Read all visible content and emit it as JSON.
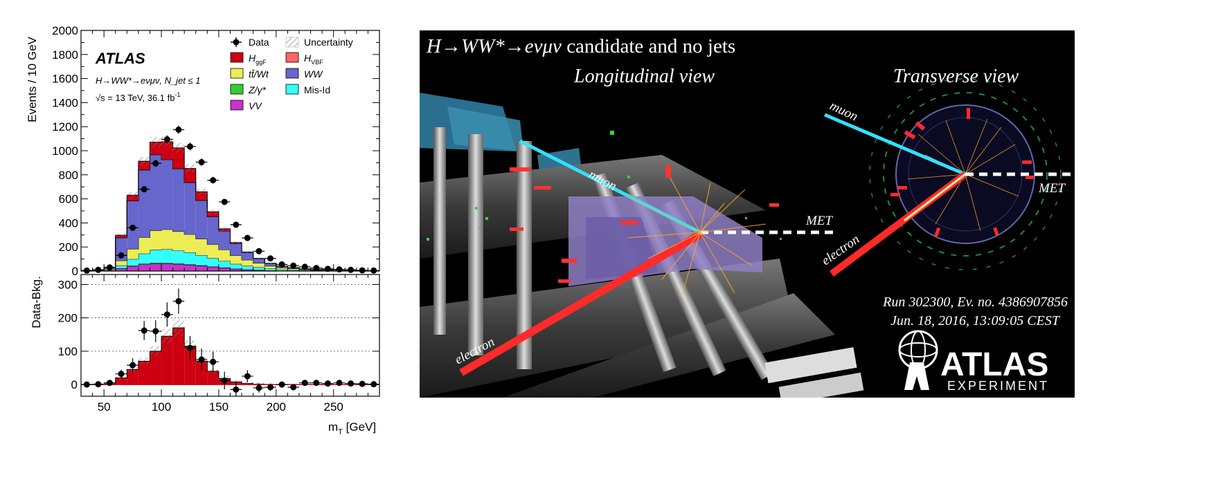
{
  "chart_data": [
    {
      "type": "bar",
      "panel": "main",
      "stacked": true,
      "experiment_label": "ATLAS",
      "process_label": "H→WW*→eνμν, N_jet ≤ 1",
      "energy_label": "√s = 13 TeV, 36.1 fb",
      "energy_label_exp": "-1",
      "ylabel": "Events / 10 GeV",
      "xlabel": "m",
      "xlabel_sub": "T",
      "xlabel_unit": " [GeV]",
      "xlim": [
        30,
        290
      ],
      "ylim": [
        0,
        2000
      ],
      "yticks": [
        "0",
        "200",
        "400",
        "600",
        "800",
        "1000",
        "1200",
        "1400",
        "1600",
        "1800",
        "2000"
      ],
      "bin_edges": [
        30,
        40,
        50,
        60,
        70,
        80,
        90,
        100,
        110,
        120,
        130,
        140,
        150,
        160,
        170,
        180,
        190,
        200,
        210,
        220,
        230,
        240,
        250,
        260,
        270,
        280,
        290
      ],
      "series": [
        {
          "name": "VV",
          "color": "#c733c7",
          "values": [
            0,
            0,
            3,
            20,
            40,
            55,
            62,
            62,
            58,
            52,
            44,
            35,
            26,
            18,
            12,
            8,
            5,
            3,
            2,
            1,
            1,
            0,
            0,
            0,
            0,
            0
          ]
        },
        {
          "name": "Z/γ*",
          "color": "#33cc33",
          "values": [
            0,
            0,
            1,
            2,
            4,
            5,
            5,
            4,
            4,
            3,
            3,
            2,
            2,
            1,
            1,
            1,
            0,
            0,
            0,
            0,
            0,
            0,
            0,
            0,
            0,
            0
          ]
        },
        {
          "name": "Mis-Id",
          "color": "#33ffff",
          "values": [
            0,
            0,
            3,
            25,
            55,
            85,
            110,
            115,
            108,
            100,
            85,
            70,
            55,
            40,
            30,
            22,
            15,
            10,
            8,
            6,
            5,
            4,
            3,
            2,
            1,
            1
          ]
        },
        {
          "name": "tt̄/Wt",
          "color": "#ecec55",
          "values": [
            1,
            3,
            8,
            40,
            85,
            135,
            160,
            165,
            160,
            150,
            135,
            115,
            95,
            70,
            50,
            35,
            22,
            15,
            10,
            6,
            4,
            3,
            2,
            1,
            1,
            0
          ]
        },
        {
          "name": "WW",
          "color": "#6666cc",
          "values": [
            3,
            7,
            15,
            190,
            400,
            560,
            630,
            580,
            520,
            430,
            320,
            230,
            155,
            100,
            62,
            38,
            22,
            13,
            8,
            5,
            3,
            2,
            1,
            1,
            0,
            0
          ]
        },
        {
          "name": "H_VBF",
          "color": "#ff6666",
          "values": [
            0,
            0,
            0,
            1,
            2,
            3,
            4,
            4,
            4,
            3,
            2,
            1,
            0,
            0,
            0,
            0,
            0,
            0,
            0,
            0,
            0,
            0,
            0,
            0,
            0,
            0
          ]
        },
        {
          "name": "H_ggF",
          "color": "#cc0011",
          "values": [
            0,
            0,
            2,
            20,
            45,
            70,
            100,
            145,
            170,
            115,
            70,
            40,
            18,
            8,
            3,
            1,
            0,
            0,
            0,
            0,
            0,
            0,
            0,
            0,
            0,
            0
          ]
        }
      ],
      "data_points": {
        "name": "Data",
        "x": [
          35,
          45,
          55,
          65,
          75,
          85,
          95,
          105,
          115,
          125,
          135,
          145,
          155,
          165,
          175,
          185,
          195,
          205,
          215,
          225,
          235,
          245,
          255,
          265,
          275,
          285
        ],
        "y": [
          4,
          10,
          30,
          130,
          360,
          680,
          895,
          1095,
          1175,
          1035,
          905,
          755,
          575,
          385,
          275,
          165,
          105,
          55,
          45,
          35,
          25,
          18,
          14,
          10,
          6,
          4
        ]
      },
      "legend": [
        "Data",
        "Uncertainty",
        "H_ggF",
        "H_VBF",
        "tt̄/Wt",
        "WW",
        "Z/γ*",
        "Mis-Id",
        "VV"
      ],
      "legend_placement": "top-right"
    },
    {
      "type": "bar",
      "panel": "ratio",
      "ylabel": "Data-Bkg.",
      "xlim": [
        30,
        290
      ],
      "ylim": [
        -35,
        330
      ],
      "yticks": [
        "0",
        "100",
        "200",
        "300"
      ],
      "xticks": [
        "50",
        "100",
        "150",
        "200",
        "250"
      ],
      "grid": true,
      "series": [
        {
          "name": "H_ggF",
          "color": "#cc0011",
          "values": [
            0,
            0,
            2,
            20,
            45,
            70,
            100,
            145,
            170,
            115,
            70,
            40,
            18,
            8,
            3,
            1,
            0,
            0,
            0,
            0,
            0,
            0,
            0,
            0,
            0,
            0
          ]
        }
      ],
      "data_points": {
        "name": "Data",
        "x": [
          35,
          45,
          55,
          65,
          75,
          85,
          95,
          105,
          115,
          125,
          135,
          145,
          155,
          165,
          175,
          185,
          195,
          205,
          215,
          225,
          235,
          245,
          255,
          265,
          275,
          285
        ],
        "y": [
          0,
          1,
          5,
          32,
          58,
          162,
          160,
          210,
          250,
          110,
          75,
          68,
          12,
          -15,
          25,
          -10,
          -8,
          0,
          -8,
          5,
          5,
          3,
          5,
          3,
          2,
          1
        ]
      }
    }
  ],
  "event_display": {
    "title": "H→WW*→eνμν",
    "title_rest": " candidate and no jets",
    "longitudinal_label": "Longitudinal view",
    "transverse_label": "Transverse view",
    "muon_label": "muon",
    "electron_label": "electron",
    "met_label": "MET",
    "run_info": "Run 302300, Ev. no. 4386907856",
    "date_info": "Jun. 18, 2016, 13:09:05 CEST",
    "logo_text": "ATLAS",
    "logo_subtext": "EXPERIMENT"
  }
}
